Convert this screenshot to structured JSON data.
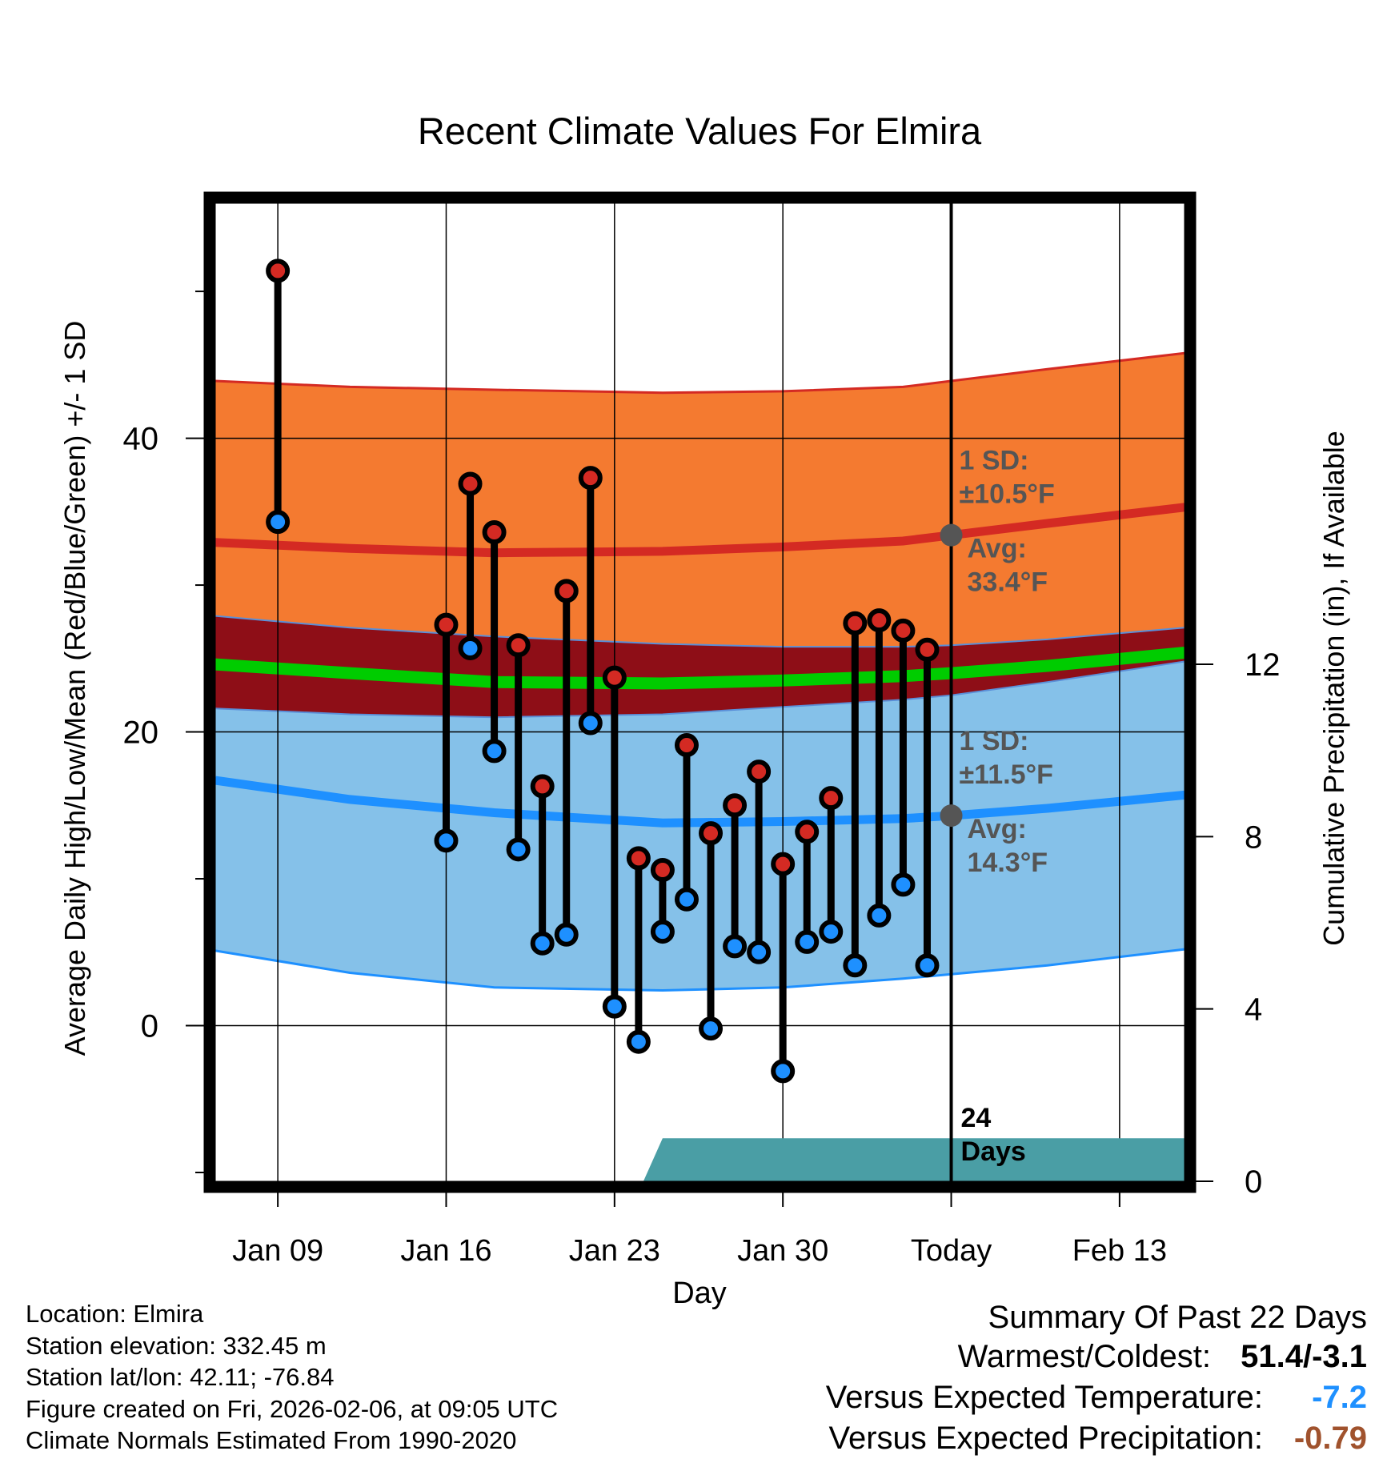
{
  "chart_data": {
    "type": "line",
    "title": "Recent Climate Values For Elmira",
    "xlabel": "Day",
    "ylabel_left": "Average Daily High/Low/Mean (Red/Blue/Green) +/- 1 SD",
    "ylabel_right": "Cumulative Precipitation (in), If Available",
    "x_tick_labels": [
      "Jan 09",
      "Jan 16",
      "Jan 23",
      "Jan 30",
      "Today",
      "Feb 13"
    ],
    "x_tick_days": [
      0,
      7,
      14,
      21,
      28,
      35
    ],
    "x_range_days": [
      -2.6,
      37.7
    ],
    "y_left_ticks": [
      0,
      20,
      40
    ],
    "y_left_range": [
      -10.6,
      56
    ],
    "y_right_ticks": [
      0,
      4,
      8,
      12
    ],
    "y_right_range": [
      0,
      22.7
    ],
    "observed_day_offsets": [
      0,
      7,
      8,
      9,
      10,
      11,
      12,
      13,
      14,
      15,
      16,
      17,
      18,
      19,
      20,
      21,
      22,
      23,
      24,
      25,
      26,
      27
    ],
    "daily_high": [
      51.4,
      27.3,
      36.9,
      33.6,
      25.9,
      16.3,
      29.6,
      37.3,
      23.7,
      11.4,
      10.6,
      19.1,
      13.1,
      15.0,
      17.3,
      11.0,
      13.2,
      15.5,
      27.4,
      27.6,
      26.9,
      25.6
    ],
    "daily_low": [
      34.3,
      12.6,
      25.7,
      18.7,
      12.0,
      5.6,
      6.2,
      20.6,
      1.3,
      -1.1,
      6.4,
      8.6,
      -0.2,
      5.4,
      5.0,
      -3.1,
      5.7,
      6.4,
      4.1,
      7.5,
      9.6,
      4.1
    ],
    "normals_day_offsets": [
      -2.6,
      3,
      9,
      16,
      21,
      26,
      28,
      32,
      37.7
    ],
    "normal_high_avg": [
      32.9,
      32.5,
      32.2,
      32.3,
      32.6,
      33.0,
      33.4,
      34.2,
      35.3
    ],
    "normal_high_sd_upper": [
      43.9,
      43.5,
      43.3,
      43.1,
      43.2,
      43.5,
      43.9,
      44.7,
      45.8
    ],
    "normal_high_sd_lower": [
      27.9,
      27.1,
      26.5,
      26.0,
      25.8,
      25.8,
      25.9,
      26.3,
      27.1
    ],
    "normal_mean": [
      24.6,
      24.0,
      23.4,
      23.3,
      23.5,
      23.8,
      24.0,
      24.5,
      25.4
    ],
    "normal_low_avg": [
      16.7,
      15.4,
      14.5,
      13.8,
      13.9,
      14.1,
      14.3,
      14.8,
      15.7
    ],
    "normal_low_sd_upper": [
      21.6,
      21.2,
      21.0,
      21.2,
      21.7,
      22.2,
      22.5,
      23.4,
      24.8
    ],
    "normal_low_sd_lower": [
      5.1,
      3.6,
      2.6,
      2.4,
      2.6,
      3.2,
      3.5,
      4.1,
      5.2
    ],
    "precip_day_offsets": [
      15.2,
      16,
      28,
      37.7
    ],
    "precip_cumulative": [
      0,
      1.0,
      1.0,
      1.0
    ],
    "today_day_offset": 28,
    "annotations": {
      "high_sd": "1 SD:",
      "high_sd_val": "±10.5°F",
      "high_avg": "Avg:",
      "high_avg_val": "33.4°F",
      "low_sd": "1 SD:",
      "low_sd_val": "±11.5°F",
      "low_avg": "Avg:",
      "low_avg_val": "14.3°F",
      "days_num": "24",
      "days_label": "Days"
    },
    "colors": {
      "high_band": "#f47a30",
      "high_line": "#d42a23",
      "mean_band": "#8e0e17",
      "mean_line": "#00cc00",
      "low_band": "#85c1e9",
      "low_line": "#1e90ff",
      "precip": "#4a9ea5",
      "marker_high": "#d42a23",
      "marker_low": "#1e90ff",
      "annotation": "#555555"
    }
  },
  "info": {
    "location": "Location: Elmira",
    "elevation": "Station elevation: 332.45 m",
    "latlon": "Station lat/lon: 42.11; -76.84",
    "created": "Figure created on Fri, 2026-02-06, at 09:05 UTC",
    "normals": "Climate Normals Estimated From 1990-2020"
  },
  "summary": {
    "title": "Summary Of Past 22 Days",
    "warmest_coldest_label": "Warmest/Coldest:",
    "warmest_coldest_value": "51.4/-3.1",
    "temp_label": "Versus Expected Temperature:",
    "temp_value": "-7.2",
    "temp_color": "#1e90ff",
    "precip_label": "Versus Expected Precipitation:",
    "precip_value": "-0.79",
    "precip_color": "#a0522d"
  }
}
